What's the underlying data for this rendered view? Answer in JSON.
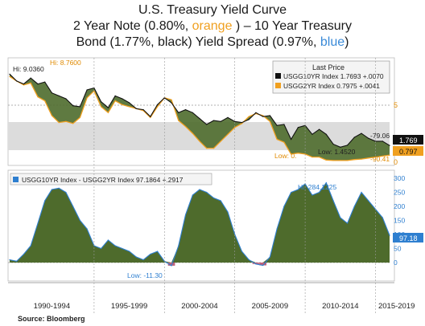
{
  "title": {
    "line1": "U.S. Treasury Yield Curve",
    "line2_a": "2 Year Note (0.80%, ",
    "line2_orange": "orange",
    "line2_b": " ) – 10 Year Treasury",
    "line3_a": "Bond  (1.77%, black) Yield Spread (0.97%, ",
    "line3_blue": "blue",
    "line3_b": ")"
  },
  "source": "Source: Bloomberg",
  "colors": {
    "ten_year_line": "#111111",
    "two_year_line": "#f0a020",
    "fill_green": "#4e6b2c",
    "spread_accent": "#2e7fd0",
    "negative_fill": "#c0607a",
    "shaded_band": "#dcdcdc"
  },
  "chart_data": [
    {
      "type": "line",
      "legend": {
        "header": "Last Price",
        "entries": [
          {
            "label": "USGG10YR Index  1.7693  +.0070",
            "color": "#111111"
          },
          {
            "label": "USGG2YR Index  0.7975  +.0041",
            "color": "#f0a020"
          }
        ]
      },
      "annotations": {
        "hi_10y": "Hi: 9.0360",
        "hi_2y": "Hi: 8.7600",
        "low_2y": "Low: 0.",
        "low_10y": "Low: 1.4520",
        "right_1": "-79.06",
        "right_2": "-90.41"
      },
      "last_value_tags": [
        "1.769",
        "0.797"
      ],
      "y_ticks": [
        5,
        0
      ],
      "ylim": [
        0,
        10
      ],
      "series": [
        {
          "name": "USGG10YR Index",
          "x": [
            1989.0,
            1989.5,
            1990.0,
            1990.5,
            1991.0,
            1991.5,
            1992.0,
            1992.5,
            1993.0,
            1993.5,
            1994.0,
            1994.5,
            1995.0,
            1995.5,
            1996.0,
            1996.5,
            1997.0,
            1997.5,
            1998.0,
            1998.5,
            1999.0,
            1999.5,
            2000.0,
            2000.5,
            2001.0,
            2001.5,
            2002.0,
            2002.5,
            2003.0,
            2003.5,
            2004.0,
            2004.5,
            2005.0,
            2005.5,
            2006.0,
            2006.5,
            2007.0,
            2007.5,
            2008.0,
            2008.5,
            2009.0,
            2009.5,
            2010.0,
            2010.5,
            2011.0,
            2011.5,
            2012.0,
            2012.5,
            2013.0,
            2013.5,
            2014.0,
            2014.5,
            2015.0,
            2015.5,
            2016.0
          ],
          "values": [
            9.0,
            8.3,
            8.0,
            8.6,
            8.0,
            8.2,
            7.1,
            6.8,
            6.5,
            5.8,
            5.7,
            7.4,
            7.6,
            6.2,
            5.6,
            6.8,
            6.5,
            6.1,
            5.5,
            5.4,
            4.7,
            5.9,
            6.6,
            6.1,
            5.1,
            5.4,
            5.1,
            4.5,
            3.9,
            4.3,
            4.2,
            4.6,
            4.2,
            4.1,
            4.4,
            5.1,
            4.7,
            4.8,
            3.8,
            3.9,
            2.4,
            3.6,
            3.8,
            2.9,
            3.4,
            2.9,
            1.9,
            1.6,
            1.8,
            2.6,
            3.0,
            2.5,
            2.2,
            2.2,
            1.77
          ]
        },
        {
          "name": "USGG2YR Index",
          "x": [
            1989.0,
            1989.5,
            1990.0,
            1990.5,
            1991.0,
            1991.5,
            1992.0,
            1992.5,
            1993.0,
            1993.5,
            1994.0,
            1994.5,
            1995.0,
            1995.5,
            1996.0,
            1996.5,
            1997.0,
            1997.5,
            1998.0,
            1998.5,
            1999.0,
            1999.5,
            2000.0,
            2000.5,
            2001.0,
            2001.5,
            2002.0,
            2002.5,
            2003.0,
            2003.5,
            2004.0,
            2004.5,
            2005.0,
            2005.5,
            2006.0,
            2006.5,
            2007.0,
            2007.5,
            2008.0,
            2008.5,
            2009.0,
            2009.5,
            2010.0,
            2010.5,
            2011.0,
            2011.5,
            2012.0,
            2012.5,
            2013.0,
            2013.5,
            2014.0,
            2014.5,
            2015.0,
            2015.5,
            2016.0
          ],
          "values": [
            8.76,
            8.3,
            7.9,
            8.1,
            6.7,
            6.3,
            4.8,
            4.1,
            4.2,
            4.0,
            4.6,
            6.6,
            7.3,
            5.7,
            5.1,
            6.3,
            5.9,
            5.7,
            5.5,
            5.3,
            4.6,
            5.7,
            6.6,
            6.4,
            4.3,
            3.7,
            3.0,
            2.2,
            1.5,
            1.5,
            2.2,
            2.9,
            3.6,
            4.0,
            4.7,
            5.0,
            4.8,
            4.2,
            2.4,
            2.1,
            0.9,
            1.0,
            0.9,
            0.6,
            0.6,
            0.3,
            0.25,
            0.25,
            0.25,
            0.35,
            0.4,
            0.5,
            0.6,
            0.7,
            0.8
          ]
        }
      ]
    },
    {
      "type": "area",
      "legend": {
        "entries": [
          {
            "label": "USGG10YR Index - USGG2YR Index  97.1864  +.2917",
            "color": "#2e7fd0"
          }
        ]
      },
      "annotations": {
        "hi": "Hi: 284.1225",
        "low": "Low: -11.30"
      },
      "last_value_tag": "97.18",
      "y_ticks": [
        300,
        250,
        200,
        150,
        100,
        50,
        0
      ],
      "ylim": [
        -40,
        300
      ],
      "series": [
        {
          "name": "USGG10YR Index - USGG2YR Index",
          "x": [
            1989.0,
            1989.5,
            1990.0,
            1990.5,
            1991.0,
            1991.5,
            1992.0,
            1992.5,
            1993.0,
            1993.5,
            1994.0,
            1994.5,
            1995.0,
            1995.5,
            1996.0,
            1996.5,
            1997.0,
            1997.5,
            1998.0,
            1998.5,
            1999.0,
            1999.5,
            2000.0,
            2000.5,
            2001.0,
            2001.5,
            2002.0,
            2002.5,
            2003.0,
            2003.5,
            2004.0,
            2004.5,
            2005.0,
            2005.5,
            2006.0,
            2006.5,
            2007.0,
            2007.5,
            2008.0,
            2008.5,
            2009.0,
            2009.5,
            2010.0,
            2010.5,
            2011.0,
            2011.5,
            2012.0,
            2012.5,
            2013.0,
            2013.5,
            2014.0,
            2014.5,
            2015.0,
            2015.5,
            2016.0
          ],
          "values": [
            10,
            5,
            30,
            60,
            140,
            220,
            260,
            265,
            250,
            200,
            150,
            120,
            60,
            50,
            80,
            60,
            50,
            40,
            20,
            10,
            30,
            40,
            5,
            -11,
            60,
            170,
            240,
            260,
            250,
            230,
            220,
            180,
            100,
            40,
            10,
            -5,
            -10,
            20,
            120,
            200,
            250,
            260,
            280,
            240,
            250,
            284,
            220,
            160,
            140,
            200,
            250,
            220,
            190,
            160,
            97
          ]
        }
      ],
      "x_ticks": [
        "1990-1994",
        "1995-1999",
        "2000-2004",
        "2005-2009",
        "2010-2014",
        "2015-2019"
      ]
    }
  ]
}
